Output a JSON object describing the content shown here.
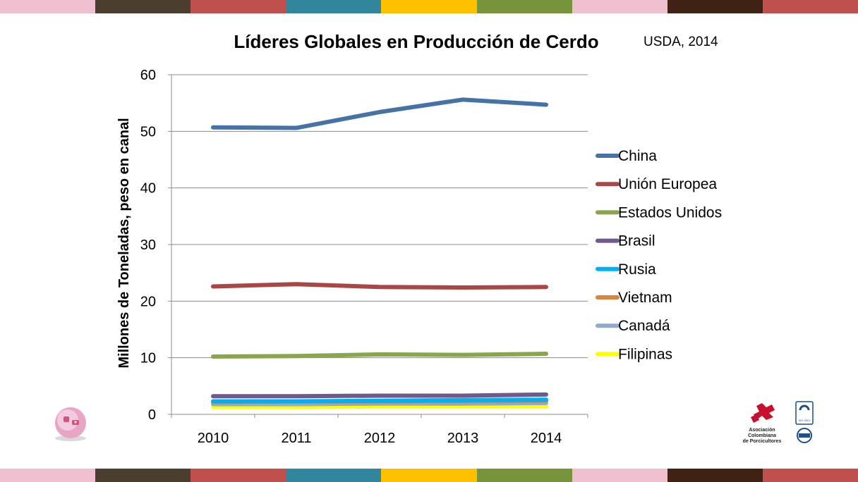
{
  "header": {
    "title": "Líderes Globales en Producción de Cerdo",
    "source": "USDA, 2014"
  },
  "stripes": {
    "colors": [
      "#f0c0d0",
      "#4a3f2e",
      "#c0504d",
      "#31859c",
      "#ffc000",
      "#77933c",
      "#f0c0d0",
      "#3f2213",
      "#c0504d"
    ]
  },
  "logo_right": {
    "text": [
      "Asociación",
      "Colombiana",
      "de Porcicultores"
    ],
    "badge": "ISO 9001"
  },
  "chart_data": {
    "type": "line",
    "title": "Líderes Globales en Producción de Cerdo",
    "xlabel": "",
    "ylabel": "Millones de Toneladas, peso en canal",
    "x": [
      "2010",
      "2011",
      "2012",
      "2013",
      "2014"
    ],
    "ylim": [
      0,
      60
    ],
    "yticks": [
      0,
      10,
      20,
      30,
      40,
      50,
      60
    ],
    "grid": true,
    "legend": "right",
    "series": [
      {
        "name": "China",
        "color": "#4572a7",
        "values": [
          50.7,
          50.6,
          53.4,
          55.6,
          54.7
        ]
      },
      {
        "name": "Unión Europea",
        "color": "#aa4643",
        "values": [
          22.6,
          23.0,
          22.5,
          22.4,
          22.5
        ]
      },
      {
        "name": "Estados Unidos",
        "color": "#89a54e",
        "values": [
          10.2,
          10.3,
          10.6,
          10.5,
          10.7
        ]
      },
      {
        "name": "Brasil",
        "color": "#71588f",
        "values": [
          3.2,
          3.2,
          3.3,
          3.3,
          3.5
        ]
      },
      {
        "name": "Rusia",
        "color": "#00b0f0",
        "values": [
          2.3,
          2.3,
          2.4,
          2.5,
          2.6
        ]
      },
      {
        "name": "Vietnam",
        "color": "#db843d",
        "values": [
          2.2,
          2.3,
          2.3,
          2.3,
          2.4
        ]
      },
      {
        "name": "Canadá",
        "color": "#93a9cf",
        "values": [
          1.8,
          1.8,
          1.9,
          1.9,
          2.0
        ]
      },
      {
        "name": "Filipinas",
        "color": "#ffff00",
        "values": [
          1.3,
          1.3,
          1.4,
          1.4,
          1.4
        ]
      }
    ]
  }
}
